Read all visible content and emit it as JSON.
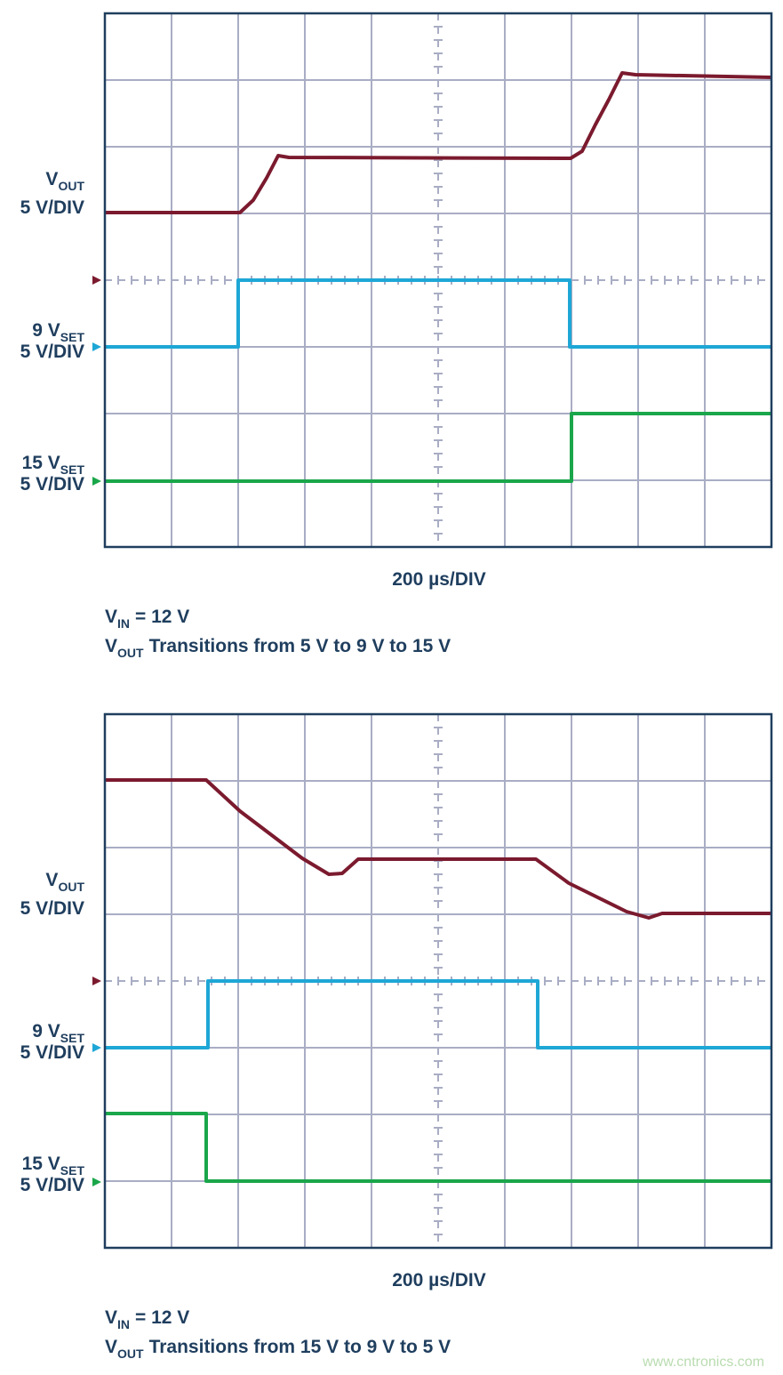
{
  "panels": [
    {
      "traces": [
        {
          "name": {
            "main": "V",
            "sub": "OUT"
          },
          "scale": "5 V/DIV"
        },
        {
          "name": {
            "main": "9 V",
            "sub": "SET"
          },
          "scale": "5 V/DIV"
        },
        {
          "name": {
            "main": "15 V",
            "sub": "SET"
          },
          "scale": "5 V/DIV"
        }
      ],
      "timebase": "200 µs/DIV",
      "conditions": [
        {
          "main": "V",
          "sub": "IN",
          "rest": "= 12 V"
        },
        {
          "main": "V",
          "sub": "OUT",
          "rest": "Transitions from 5 V to 9 V to 15 V"
        }
      ]
    },
    {
      "traces": [
        {
          "name": {
            "main": "V",
            "sub": "OUT"
          },
          "scale": "5 V/DIV"
        },
        {
          "name": {
            "main": "9 V",
            "sub": "SET"
          },
          "scale": "5 V/DIV"
        },
        {
          "name": {
            "main": "15 V",
            "sub": "SET"
          },
          "scale": "5 V/DIV"
        }
      ],
      "timebase": "200 µs/DIV",
      "conditions": [
        {
          "main": "V",
          "sub": "IN",
          "rest": "= 12 V"
        },
        {
          "main": "V",
          "sub": "OUT",
          "rest": "Transitions from 15 V to 9 V to 5 V"
        }
      ]
    }
  ],
  "watermark": "www.cntronics.com"
}
